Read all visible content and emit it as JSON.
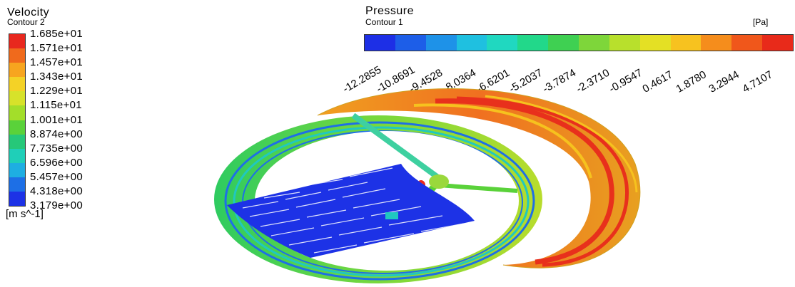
{
  "velocity_legend": {
    "title": "Velocity",
    "subtitle": "Contour 2",
    "unit": "[m s^-1]",
    "labels": [
      "1.685e+01",
      "1.571e+01",
      "1.457e+01",
      "1.343e+01",
      "1.229e+01",
      "1.115e+01",
      "1.001e+01",
      "8.874e+00",
      "7.735e+00",
      "6.596e+00",
      "5.457e+00",
      "4.318e+00",
      "3.179e+00"
    ],
    "colors": [
      "#e8281e",
      "#f06a1c",
      "#f7a51f",
      "#f4d226",
      "#d7e22a",
      "#a3de2a",
      "#5ad23a",
      "#26c879",
      "#1fcfb8",
      "#1eaee2",
      "#1d6fe6",
      "#1d32e6"
    ]
  },
  "pressure_legend": {
    "title": "Pressure",
    "subtitle": "Contour 1",
    "unit": "[Pa]",
    "labels": [
      "-12.2855",
      "-10.8691",
      "-9.4528",
      "-8.0364",
      "-6.6201",
      "-5.2037",
      "-3.7874",
      "-2.3710",
      "-0.9547",
      "0.4617",
      "1.8780",
      "3.2944",
      "4.7107"
    ],
    "colors": [
      "#1d2fe6",
      "#1d5ee8",
      "#1e92e8",
      "#1fc0e0",
      "#20d8c0",
      "#22d88a",
      "#3fd052",
      "#7ed63a",
      "#b8e02c",
      "#e4e024",
      "#f7c21f",
      "#f58d1c",
      "#f0571b",
      "#e82a1a"
    ]
  }
}
